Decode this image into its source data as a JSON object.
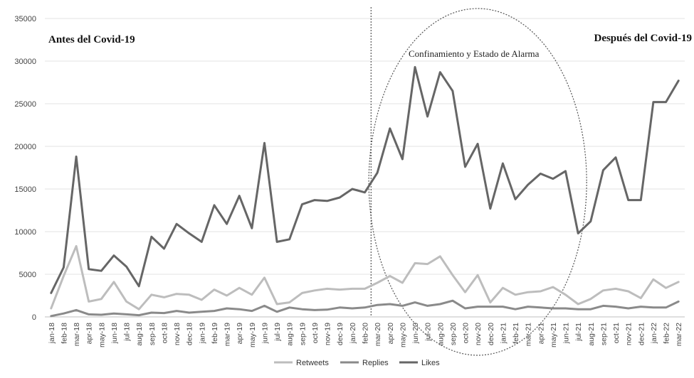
{
  "chart_data": {
    "type": "line",
    "title": "",
    "xlabel": "",
    "ylabel": "",
    "ylim": [
      0,
      35000
    ],
    "yticks": [
      0,
      5000,
      10000,
      15000,
      20000,
      25000,
      30000,
      35000
    ],
    "grid": true,
    "legend_position": "bottom-center",
    "categories": [
      "jan-18",
      "feb-18",
      "mar-18",
      "apr-18",
      "may-18",
      "jun-18",
      "jul-18",
      "aug-18",
      "sep-18",
      "oct-18",
      "nov-18",
      "dec-18",
      "jan-19",
      "feb-19",
      "mar-19",
      "apr-19",
      "may-19",
      "jun-19",
      "jul-19",
      "aug-19",
      "sep-19",
      "oct-19",
      "nov-19",
      "dec-19",
      "jan-20",
      "feb-20",
      "mar-20",
      "apr-20",
      "may-20",
      "jun-20",
      "jul-20",
      "aug-20",
      "sep-20",
      "oct-20",
      "nov-20",
      "dec-20",
      "jan-21",
      "feb-21",
      "mar-21",
      "apr-21",
      "may-21",
      "jun-21",
      "jul-21",
      "aug-21",
      "sep-21",
      "oct-21",
      "nov-21",
      "dec-21",
      "jan-22",
      "feb-22",
      "mar-22"
    ],
    "series": [
      {
        "name": "Retweets",
        "color": "#bdbdbd",
        "values": [
          1000,
          4800,
          8300,
          1800,
          2100,
          4100,
          1800,
          900,
          2600,
          2300,
          2700,
          2600,
          2000,
          3200,
          2500,
          3400,
          2600,
          4600,
          1500,
          1700,
          2800,
          3100,
          3300,
          3200,
          3300,
          3300,
          4000,
          4800,
          4000,
          6300,
          6200,
          7100,
          4900,
          2900,
          4900,
          1700,
          3400,
          2600,
          2900,
          3000,
          3500,
          2600,
          1500,
          2100,
          3100,
          3300,
          3000,
          2200,
          4400,
          3400,
          4100
        ]
      },
      {
        "name": "Replies",
        "color": "#8a8a8a",
        "values": [
          100,
          400,
          800,
          300,
          250,
          400,
          300,
          200,
          500,
          450,
          700,
          500,
          600,
          700,
          1000,
          900,
          700,
          1300,
          600,
          1100,
          900,
          800,
          850,
          1100,
          1000,
          1100,
          1400,
          1500,
          1300,
          1700,
          1300,
          1500,
          1900,
          1000,
          1200,
          1200,
          1200,
          900,
          1200,
          1100,
          1000,
          1000,
          900,
          900,
          1300,
          1200,
          1000,
          1200,
          1100,
          1100,
          1800
        ]
      },
      {
        "name": "Likes",
        "color": "#666666",
        "values": [
          2800,
          5800,
          18800,
          5600,
          5400,
          7200,
          5900,
          3600,
          9400,
          8000,
          10900,
          9800,
          8800,
          13100,
          10900,
          14200,
          10400,
          20400,
          8800,
          9100,
          13200,
          13700,
          13600,
          14000,
          15000,
          14600,
          16900,
          22100,
          18500,
          29300,
          23500,
          28700,
          26500,
          17600,
          20300,
          12700,
          18000,
          13800,
          15500,
          16800,
          16200,
          17100,
          9800,
          11200,
          17200,
          18700,
          13700,
          13700,
          25200,
          25200,
          27700
        ]
      }
    ],
    "annotations": {
      "before": "Antes del Covid-19",
      "after": "Después del Covid-19",
      "lockdown": "Confinamiento y Estado de Alarma"
    },
    "divider_after_category": "feb-20",
    "ellipse_span": [
      "mar-20",
      "jul-21"
    ]
  }
}
